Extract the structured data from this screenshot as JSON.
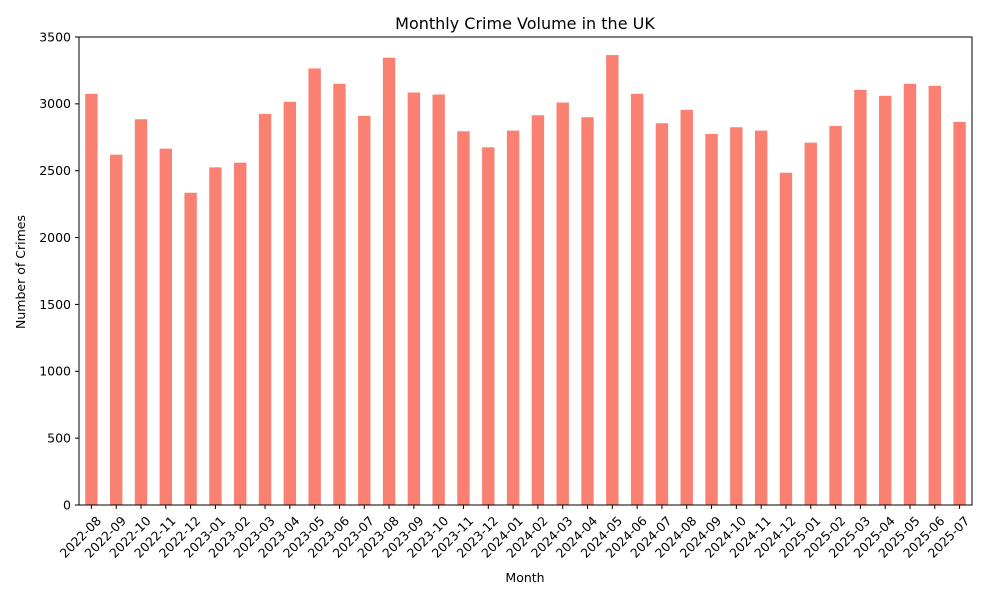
{
  "chart_data": {
    "type": "bar",
    "title": "Monthly Crime Volume in the UK",
    "xlabel": "Month",
    "ylabel": "Number of Crimes",
    "ylim": [
      0,
      3500
    ],
    "yticks": [
      0,
      500,
      1000,
      1500,
      2000,
      2500,
      3000,
      3500
    ],
    "bar_color": "#fa8072",
    "grid": false,
    "legend": "none",
    "categories": [
      "2022-08",
      "2022-09",
      "2022-10",
      "2022-11",
      "2022-12",
      "2023-01",
      "2023-02",
      "2023-03",
      "2023-04",
      "2023-05",
      "2023-06",
      "2023-07",
      "2023-08",
      "2023-09",
      "2023-10",
      "2023-11",
      "2023-12",
      "2024-01",
      "2024-02",
      "2024-03",
      "2024-04",
      "2024-05",
      "2024-06",
      "2024-07",
      "2024-08",
      "2024-09",
      "2024-10",
      "2024-11",
      "2024-12",
      "2025-01",
      "2025-02",
      "2025-03",
      "2025-04",
      "2025-05",
      "2025-06",
      "2025-07"
    ],
    "values": [
      3075,
      2620,
      2885,
      2665,
      2335,
      2525,
      2560,
      2925,
      3015,
      3265,
      3150,
      2910,
      3345,
      3085,
      3070,
      2795,
      2675,
      2800,
      2915,
      3010,
      2900,
      3365,
      3075,
      2855,
      2955,
      2775,
      2825,
      2800,
      2485,
      2710,
      2835,
      3105,
      3060,
      3150,
      3135,
      2865
    ]
  }
}
